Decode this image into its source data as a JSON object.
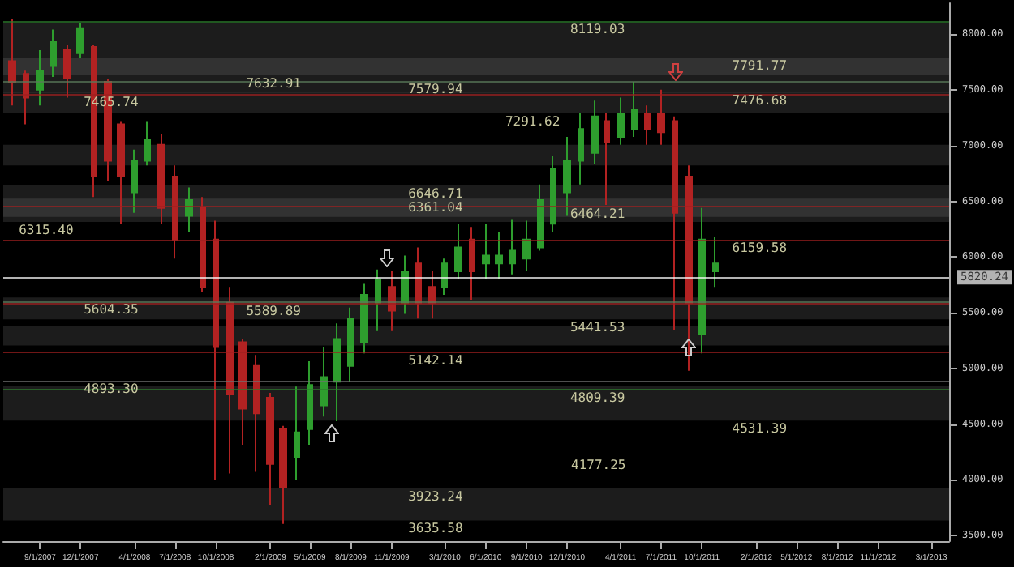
{
  "chart_data": {
    "type": "candlestick",
    "x": [
      "2007-07",
      "2007-08",
      "2007-09",
      "2007-10",
      "2007-11",
      "2007-12",
      "2008-01",
      "2008-02",
      "2008-03",
      "2008-04",
      "2008-05",
      "2008-06",
      "2008-07",
      "2008-08",
      "2008-09",
      "2008-10",
      "2008-11",
      "2008-12",
      "2009-01",
      "2009-02",
      "2009-03",
      "2009-04",
      "2009-05",
      "2009-06",
      "2009-07",
      "2009-08",
      "2009-09",
      "2009-10",
      "2009-11",
      "2009-12",
      "2010-01",
      "2010-02",
      "2010-03",
      "2010-04",
      "2010-05",
      "2010-06",
      "2010-07",
      "2010-08",
      "2010-09",
      "2010-10",
      "2010-11",
      "2010-12",
      "2011-01",
      "2011-02",
      "2011-03",
      "2011-04",
      "2011-05",
      "2011-06",
      "2011-07",
      "2011-08",
      "2011-09",
      "2011-10",
      "2011-11"
    ],
    "ohlc": [
      [
        7759,
        8142,
        7362,
        7575
      ],
      [
        7646,
        7674,
        7192,
        7433
      ],
      [
        7504,
        7859,
        7362,
        7674
      ],
      [
        7717,
        8043,
        7618,
        7930
      ],
      [
        7859,
        7901,
        7433,
        7603
      ],
      [
        7830,
        8100,
        7788,
        8057
      ],
      [
        7887,
        7901,
        6540,
        6724
      ],
      [
        7575,
        7603,
        6682,
        6866
      ],
      [
        7192,
        7221,
        6299,
        6724
      ],
      [
        6582,
        6965,
        6398,
        6866
      ],
      [
        6866,
        7221,
        6823,
        7050
      ],
      [
        7008,
        7107,
        6299,
        6441
      ],
      [
        6724,
        6823,
        5987,
        6157
      ],
      [
        6370,
        6625,
        6228,
        6512
      ],
      [
        6441,
        6540,
        5689,
        5732
      ],
      [
        6157,
        6327,
        4002,
        5193
      ],
      [
        5590,
        5732,
        4058,
        4767
      ],
      [
        5235,
        5264,
        4314,
        4640
      ],
      [
        5023,
        5122,
        4072,
        4597
      ],
      [
        4738,
        4782,
        3775,
        4143
      ],
      [
        4455,
        4484,
        3604,
        3931
      ],
      [
        4200,
        4838,
        4002,
        4427
      ],
      [
        4455,
        5065,
        4314,
        4852
      ],
      [
        4668,
        5193,
        4569,
        4923
      ],
      [
        4881,
        5405,
        4526,
        5264
      ],
      [
        5023,
        5547,
        4881,
        5448
      ],
      [
        5235,
        5760,
        5136,
        5661
      ],
      [
        5590,
        5888,
        5335,
        5802
      ],
      [
        5732,
        5873,
        5335,
        5519
      ],
      [
        5590,
        6015,
        5491,
        5873
      ],
      [
        5944,
        6086,
        5448,
        5590
      ],
      [
        5732,
        5873,
        5448,
        5590
      ],
      [
        5732,
        5987,
        5661,
        5944
      ],
      [
        5873,
        6299,
        5802,
        6086
      ],
      [
        6157,
        6270,
        5618,
        5873
      ],
      [
        5944,
        6299,
        5802,
        6015
      ],
      [
        5944,
        6228,
        5802,
        6015
      ],
      [
        5944,
        6341,
        5845,
        6058
      ],
      [
        5987,
        6327,
        5873,
        6157
      ],
      [
        6086,
        6653,
        6058,
        6512
      ],
      [
        6299,
        6909,
        6228,
        6795
      ],
      [
        6582,
        7079,
        6370,
        6866
      ],
      [
        6866,
        7291,
        6653,
        7150
      ],
      [
        6937,
        7405,
        6838,
        7263
      ],
      [
        7221,
        7291,
        6469,
        7036
      ],
      [
        7079,
        7433,
        7008,
        7291
      ],
      [
        7150,
        7575,
        7079,
        7320
      ],
      [
        7291,
        7362,
        7008,
        7150
      ],
      [
        7291,
        7504,
        7008,
        7121
      ],
      [
        7221,
        7263,
        5349,
        6398
      ],
      [
        6724,
        6823,
        4980,
        5590
      ],
      [
        5306,
        6441,
        5136,
        6157
      ],
      [
        5873,
        6185,
        5732,
        5944
      ]
    ],
    "colors": [
      "#b22222",
      "#b22222",
      "#2e9e2e",
      "#2e9e2e",
      "#b22222",
      "#2e9e2e",
      "#b22222",
      "#b22222",
      "#b22222",
      "#2e9e2e",
      "#2e9e2e",
      "#b22222",
      "#b22222",
      "#2e9e2e",
      "#b22222",
      "#b22222",
      "#b22222",
      "#b22222",
      "#b22222",
      "#b22222",
      "#b22222",
      "#2e9e2e",
      "#2e9e2e",
      "#2e9e2e",
      "#2e9e2e",
      "#2e9e2e",
      "#2e9e2e",
      "#2e9e2e",
      "#b22222",
      "#2e9e2e",
      "#b22222",
      "#b22222",
      "#2e9e2e",
      "#2e9e2e",
      "#b22222",
      "#2e9e2e",
      "#2e9e2e",
      "#2e9e2e",
      "#2e9e2e",
      "#2e9e2e",
      "#2e9e2e",
      "#2e9e2e",
      "#2e9e2e",
      "#2e9e2e",
      "#b22222",
      "#2e9e2e",
      "#2e9e2e",
      "#b22222",
      "#b22222",
      "#b22222",
      "#b22222",
      "#2e9e2e",
      "#2e9e2e"
    ],
    "xlim": [
      "2007-06-10",
      "2013-04-10"
    ],
    "xticks": [
      {
        "value": "2007-09-01",
        "label": "9/1/2007"
      },
      {
        "value": "2007-12-01",
        "label": "12/1/2007"
      },
      {
        "value": "2008-04-01",
        "label": "4/1/2008"
      },
      {
        "value": "2008-07-01",
        "label": "7/1/2008"
      },
      {
        "value": "2008-10-01",
        "label": "10/1/2008"
      },
      {
        "value": "2009-02-01",
        "label": "2/1/2009"
      },
      {
        "value": "2009-05-01",
        "label": "5/1/2009"
      },
      {
        "value": "2009-08-01",
        "label": "8/1/2009"
      },
      {
        "value": "2009-11-01",
        "label": "11/1/2009"
      },
      {
        "value": "2010-03-01",
        "label": "3/1/2010"
      },
      {
        "value": "2010-06-01",
        "label": "6/1/2010"
      },
      {
        "value": "2010-09-01",
        "label": "9/1/2010"
      },
      {
        "value": "2010-12-01",
        "label": "12/1/2010"
      },
      {
        "value": "2011-04-01",
        "label": "4/1/2011"
      },
      {
        "value": "2011-07-01",
        "label": "7/1/2011"
      },
      {
        "value": "2011-10-01",
        "label": "10/1/2011"
      },
      {
        "value": "2012-02-01",
        "label": "2/1/2012"
      },
      {
        "value": "2012-05-01",
        "label": "5/1/2012"
      },
      {
        "value": "2012-08-01",
        "label": "8/1/2012"
      },
      {
        "value": "2012-11-01",
        "label": "11/1/2012"
      },
      {
        "value": "2013-03-01",
        "label": "3/1/2013"
      }
    ],
    "ylim": [
      3450,
      8280
    ],
    "yticks": [
      {
        "value": 3500,
        "label": "3500.00"
      },
      {
        "value": 4000,
        "label": "4000.00"
      },
      {
        "value": 4500,
        "label": "4500.00"
      },
      {
        "value": 5000,
        "label": "5000.00"
      },
      {
        "value": 5500,
        "label": "5500.00"
      },
      {
        "value": 6000,
        "label": "6000.00"
      },
      {
        "value": 6500,
        "label": "6500.00"
      },
      {
        "value": 7000,
        "label": "7000.00"
      },
      {
        "value": 7500,
        "label": "7500.00"
      },
      {
        "value": 8000,
        "label": "8000.00"
      }
    ],
    "grid": false,
    "ref_lines": [
      {
        "axis": "y",
        "value": 8119.03,
        "color": "#2e7d2e"
      },
      {
        "axis": "y",
        "value": 7579.94,
        "color": "#5a7a5a"
      },
      {
        "axis": "y",
        "value": 7465.74,
        "color": "#a02020"
      },
      {
        "axis": "y",
        "value": 6464.21,
        "color": "#a02020"
      },
      {
        "axis": "y",
        "value": 6159.58,
        "color": "#a02020"
      },
      {
        "axis": "y",
        "value": 5604.35,
        "color": "#5a7a5a"
      },
      {
        "axis": "y",
        "value": 5589.89,
        "color": "#a02020"
      },
      {
        "axis": "y",
        "value": 5142.14,
        "color": "#a02020"
      },
      {
        "axis": "y",
        "value": 4893.3,
        "color": "#707070"
      },
      {
        "axis": "y",
        "value": 4809.39,
        "color": "#2e7d2e"
      },
      {
        "axis": "y",
        "value": 5820.24,
        "label": "5820.24",
        "color": "#ffffff"
      }
    ],
    "bands": [
      {
        "axis": "y",
        "from": 7632.91,
        "to": 8100,
        "color": "#9a9a9a"
      },
      {
        "axis": "y",
        "from": 7476.68,
        "to": 7792,
        "color": "#9a9a9a"
      },
      {
        "axis": "y",
        "from": 7291.62,
        "to": 7486,
        "color": "#9a9a9a"
      },
      {
        "axis": "y",
        "from": 6823,
        "to": 7008,
        "color": "#9a9a9a"
      },
      {
        "axis": "y",
        "from": 6361.04,
        "to": 6646.71,
        "color": "#9a9a9a"
      },
      {
        "axis": "y",
        "from": 6315.4,
        "to": 6526,
        "color": "#9a9a9a"
      },
      {
        "axis": "y",
        "from": 5441.53,
        "to": 5638,
        "color": "#9a9a9a"
      },
      {
        "axis": "y",
        "from": 5207,
        "to": 5377,
        "color": "#9a9a9a"
      },
      {
        "axis": "y",
        "from": 4531.39,
        "to": 4842,
        "color": "#9a9a9a"
      },
      {
        "axis": "y",
        "from": 3635.58,
        "to": 3923.24,
        "color": "#9a9a9a"
      }
    ],
    "annotations": [
      {
        "text": "7465.74",
        "x": "2007-12",
        "y": 7465.74
      },
      {
        "text": "6315.40",
        "x": "2007-12",
        "y": 6315.4
      },
      {
        "text": "5604.35",
        "x": "2007-12",
        "y": 5604.35
      },
      {
        "text": "4893.30",
        "x": "2007-12",
        "y": 4893.3
      },
      {
        "text": "7632.91",
        "x": "2008-12",
        "y": 7632.91
      },
      {
        "text": "5589.89",
        "x": "2008-12",
        "y": 5589.89
      },
      {
        "text": "7579.94",
        "x": "2009-12",
        "y": 7579.94
      },
      {
        "text": "6646.71",
        "x": "2009-12",
        "y": 6646.71
      },
      {
        "text": "6361.04",
        "x": "2009-12",
        "y": 6361.04
      },
      {
        "text": "5142.14",
        "x": "2009-12",
        "y": 5142.14
      },
      {
        "text": "3923.24",
        "x": "2009-12",
        "y": 3923.24
      },
      {
        "text": "3635.58",
        "x": "2009-12",
        "y": 3635.58
      },
      {
        "text": "8119.03",
        "x": "2010-12",
        "y": 8119.03
      },
      {
        "text": "7291.62",
        "x": "2010-12",
        "y": 7291.62
      },
      {
        "text": "6464.21",
        "x": "2010-12",
        "y": 6464.21
      },
      {
        "text": "5441.53",
        "x": "2010-12",
        "y": 5441.53
      },
      {
        "text": "4809.39",
        "x": "2010-12",
        "y": 4809.39
      },
      "4177.25",
      {
        "text": "7791.77",
        "x": "2011-12",
        "y": 7791.77
      },
      {
        "text": "7476.68",
        "x": "2011-12",
        "y": 7476.68
      },
      {
        "text": "6159.58",
        "x": "2011-12",
        "y": 6159.58
      },
      {
        "text": "4531.39",
        "x": "2011-12",
        "y": 4531.39
      }
    ]
  }
}
